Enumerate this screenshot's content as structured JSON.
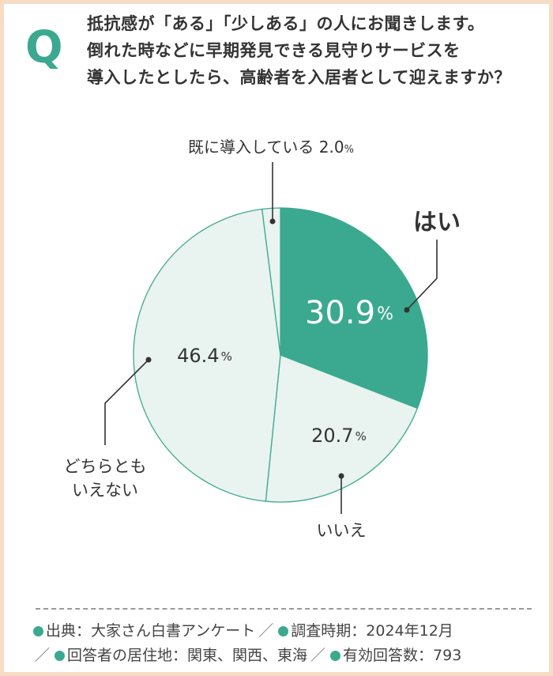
{
  "question": {
    "mark": "Q",
    "lines": [
      "抵抗感が「ある」「少しある」の人にお聞きします。",
      "倒れた時などに早期発見できる見守りサービスを",
      "導入したとしたら、高齢者を入居者として迎えますか？"
    ]
  },
  "chart_data": {
    "type": "pie",
    "slices": [
      {
        "label": "はい",
        "value": 30.9,
        "value_label": "30.9",
        "unit": "%",
        "color": "#3ba98f"
      },
      {
        "label": "いいえ",
        "value": 20.7,
        "value_label": "20.7",
        "unit": "%",
        "color": "#e9f3ef"
      },
      {
        "label": "どちらとも\nいえない",
        "value": 46.4,
        "value_label": "46.4",
        "unit": "%",
        "color": "#e9f3ef"
      },
      {
        "label": "既に導入している",
        "value": 2.0,
        "value_label": "2.0",
        "unit": "%",
        "color": "#e9f3ef"
      }
    ]
  },
  "footer": {
    "source_label": "出典：大家さん白書アンケート",
    "survey_period": "調査時期：2024年12月",
    "respondent_area": "回答者の居住地：関東、関西、東海",
    "valid_responses": "有効回答数：793",
    "separator": "／"
  }
}
